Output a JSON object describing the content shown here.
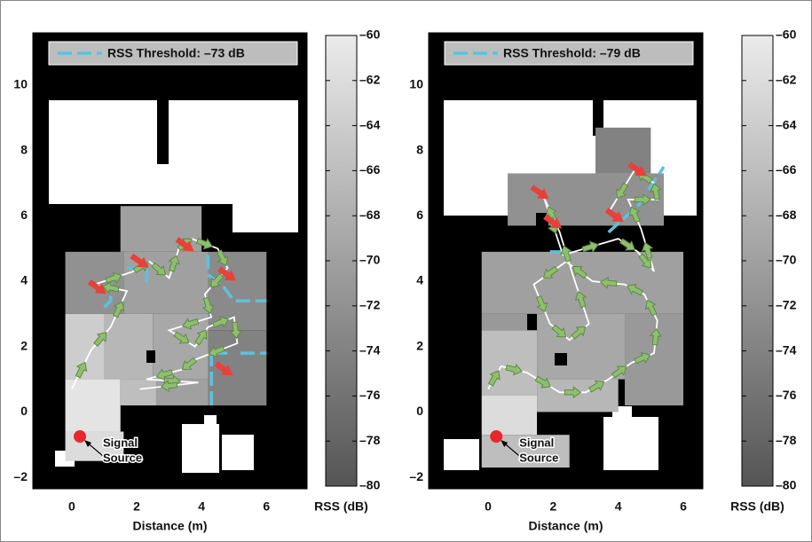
{
  "chart_data": [
    {
      "type": "heatmap",
      "legend_label": "RSS Threshold: –73 dB",
      "xlabel": "Distance (m)",
      "xlim": [
        -1.2,
        7.25
      ],
      "ylim": [
        -2.35,
        11.6
      ],
      "xticks": [
        0,
        2,
        4,
        6
      ],
      "yticks": [
        {
          "value": -2,
          "label": "–2"
        },
        0,
        2,
        4,
        6,
        8,
        10
      ],
      "cells": [
        {
          "x": [
            1.5,
            4.0
          ],
          "y": [
            4.9,
            6.3
          ],
          "value": -70
        },
        {
          "x": [
            -0.2,
            1.6
          ],
          "y": [
            3.0,
            4.9
          ],
          "value": -72
        },
        {
          "x": [
            1.6,
            4.2
          ],
          "y": [
            3.0,
            4.9
          ],
          "value": -70
        },
        {
          "x": [
            4.2,
            6.0
          ],
          "y": [
            2.5,
            4.9
          ],
          "value": -73
        },
        {
          "x": [
            -0.2,
            1.0
          ],
          "y": [
            1.0,
            3.0
          ],
          "value": -64
        },
        {
          "x": [
            1.0,
            2.5
          ],
          "y": [
            1.0,
            3.0
          ],
          "value": -67
        },
        {
          "x": [
            2.5,
            4.2
          ],
          "y": [
            1.0,
            3.0
          ],
          "value": -69
        },
        {
          "x": [
            4.2,
            6.0
          ],
          "y": [
            0.2,
            2.5
          ],
          "value": -74
        },
        {
          "x": [
            -0.2,
            1.5
          ],
          "y": [
            -0.6,
            1.0
          ],
          "value": -61
        },
        {
          "x": [
            1.5,
            2.6
          ],
          "y": [
            0.2,
            1.0
          ],
          "value": -66
        },
        {
          "x": [
            2.6,
            4.2
          ],
          "y": [
            0.2,
            1.0
          ],
          "value": -70
        },
        {
          "x": [
            -0.2,
            1.6
          ],
          "y": [
            -1.5,
            -0.6
          ],
          "value": -62
        }
      ],
      "route": {
        "x": [
          0,
          0.6,
          1.2,
          1.7,
          0.7,
          1.9,
          2.4,
          3.0,
          3.3,
          3.7,
          4.5,
          4.8,
          4.1,
          4.3,
          3.0,
          3.8,
          4.2,
          5.0,
          5.1,
          3.8,
          3.4,
          2.3,
          3.9,
          2.1
        ],
        "y": [
          0.7,
          1.9,
          2.6,
          3.7,
          3.9,
          4.3,
          4.6,
          4.1,
          5.0,
          5.3,
          5.0,
          4.4,
          3.6,
          2.9,
          2.5,
          2.0,
          2.6,
          2.9,
          2.1,
          1.6,
          1.3,
          1.0,
          0.9,
          0.7
        ]
      },
      "threshold": {
        "x": [
          1.0,
          1.2,
          1.2,
          null,
          1.7,
          2.3,
          2.3,
          null,
          4.2,
          4.2,
          4.7,
          5.0,
          6.0,
          null,
          4.3,
          4.3,
          4.8,
          null,
          5.2,
          6.0
        ],
        "y": [
          3.2,
          3.4,
          4.0,
          null,
          4.4,
          4.4,
          3.9,
          null,
          4.8,
          4.2,
          3.8,
          3.4,
          3.4,
          null,
          0.2,
          1.8,
          1.8,
          null,
          1.8,
          1.8
        ]
      },
      "red_arrows": {
        "x": [
          0.8,
          2.1,
          3.5,
          4.8,
          4.7
        ],
        "y": [
          3.8,
          4.6,
          5.1,
          4.2,
          1.3
        ]
      },
      "source": {
        "x": 0.25,
        "y": -0.75,
        "lines": [
          "Signal",
          "Source"
        ]
      },
      "colorbar": {
        "label": "RSS (dB)",
        "clim": [
          -80,
          -60
        ],
        "ticks": [
          {
            "value": -60,
            "label": "–60"
          },
          {
            "value": -62,
            "label": "–62"
          },
          {
            "value": -64,
            "label": "–64"
          },
          {
            "value": -66,
            "label": "–66"
          },
          {
            "value": -68,
            "label": "–68"
          },
          {
            "value": -70,
            "label": "–70"
          },
          {
            "value": -72,
            "label": "–72"
          },
          {
            "value": -74,
            "label": "–74"
          },
          {
            "value": -76,
            "label": "–76"
          },
          {
            "value": -78,
            "label": "–78"
          },
          {
            "value": -80,
            "label": "–80"
          }
        ]
      },
      "threshold_color": "#5bc3dc",
      "route_color": "#ffffff",
      "arrow_color": "#8fbf6e",
      "red_color": "#e8403a"
    },
    {
      "type": "heatmap",
      "legend_label": "RSS Threshold: –79 dB",
      "xlabel": "Distance (m)",
      "xlim": [
        -1.83,
        6.6
      ],
      "ylim": [
        -2.35,
        11.6
      ],
      "xticks": [
        0,
        2,
        4,
        6
      ],
      "yticks": [
        {
          "value": -2,
          "label": "–2"
        },
        0,
        2,
        4,
        6,
        8,
        10
      ],
      "cells": [
        {
          "x": [
            0.6,
            5.4
          ],
          "y": [
            5.7,
            7.3
          ],
          "value": -72
        },
        {
          "x": [
            3.3,
            5.0
          ],
          "y": [
            7.3,
            8.7
          ],
          "value": -74
        },
        {
          "x": [
            -0.2,
            6.0
          ],
          "y": [
            3.0,
            4.9
          ],
          "value": -70
        },
        {
          "x": [
            -0.2,
            1.2
          ],
          "y": [
            2.5,
            3.0
          ],
          "value": -71
        },
        {
          "x": [
            -0.2,
            1.5
          ],
          "y": [
            0.5,
            2.5
          ],
          "value": -66
        },
        {
          "x": [
            1.5,
            4.2
          ],
          "y": [
            1.0,
            3.0
          ],
          "value": -69
        },
        {
          "x": [
            4.2,
            6.0
          ],
          "y": [
            0.2,
            3.0
          ],
          "value": -71
        },
        {
          "x": [
            -0.2,
            1.5
          ],
          "y": [
            -0.7,
            0.5
          ],
          "value": -62
        },
        {
          "x": [
            1.5,
            4.0
          ],
          "y": [
            0.0,
            1.0
          ],
          "value": -67
        },
        {
          "x": [
            -0.2,
            2.5
          ],
          "y": [
            -1.7,
            -0.7
          ],
          "value": -66
        }
      ],
      "route": {
        "x": [
          0,
          0.4,
          1.2,
          2.2,
          3.0,
          3.7,
          4.4,
          5.1,
          5.2,
          4.8,
          4.2,
          3.2,
          2.4,
          1.4,
          1.9,
          2.5,
          3.1,
          2.6,
          2.2,
          1.7,
          2.3,
          4.0,
          4.6,
          5.1,
          4.7,
          4.3,
          5.2,
          5.1,
          4.5,
          3.7
        ],
        "y": [
          0.7,
          1.4,
          1.2,
          0.6,
          0.6,
          1.0,
          1.5,
          1.8,
          2.8,
          3.6,
          3.9,
          4.0,
          4.6,
          3.9,
          2.7,
          2.2,
          2.7,
          4.2,
          5.5,
          6.6,
          4.8,
          5.3,
          4.9,
          4.3,
          5.6,
          6.5,
          6.5,
          7.0,
          7.4,
          6.1
        ]
      },
      "threshold": {
        "x": [
          1.9,
          2.3,
          null,
          3.7,
          4.6,
          5.4
        ],
        "y": [
          4.9,
          4.9,
          null,
          5.5,
          6.3,
          7.5
        ]
      },
      "red_arrows": {
        "x": [
          1.6,
          2.0,
          3.9,
          4.6
        ],
        "y": [
          6.7,
          5.8,
          6.0,
          7.4
        ]
      },
      "source": {
        "x": 0.25,
        "y": -0.75,
        "lines": [
          "Signal",
          "Source"
        ]
      },
      "colorbar": {
        "label": "RSS (dB)",
        "clim": [
          -80,
          -60
        ],
        "ticks": [
          {
            "value": -60,
            "label": "–60"
          },
          {
            "value": -62,
            "label": "–62"
          },
          {
            "value": -64,
            "label": "–64"
          },
          {
            "value": -66,
            "label": "–66"
          },
          {
            "value": -68,
            "label": "–68"
          },
          {
            "value": -70,
            "label": "–70"
          },
          {
            "value": -72,
            "label": "–72"
          },
          {
            "value": -74,
            "label": "–74"
          },
          {
            "value": -76,
            "label": "–76"
          },
          {
            "value": -78,
            "label": "–78"
          },
          {
            "value": -80,
            "label": "–80"
          }
        ]
      },
      "threshold_color": "#5bc3dc",
      "route_color": "#ffffff",
      "arrow_color": "#8fbf6e",
      "red_color": "#e8403a"
    }
  ]
}
